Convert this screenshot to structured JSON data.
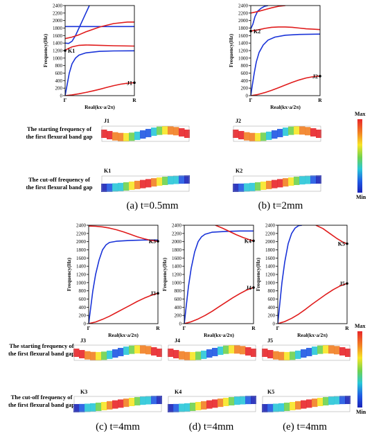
{
  "row_labels": {
    "starting": [
      "The starting frequency of",
      "the first flexural band gap"
    ],
    "cutoff": [
      "The cut-off frequency of",
      "the first flexural band gap"
    ]
  },
  "colorbar": {
    "max_label": "Max",
    "min_label": "Min"
  },
  "captions": [
    "(a) t=0.5mm",
    "(b) t=2mm",
    "(c) t=4mm",
    "(d) t=4mm",
    "(e) t=4mm"
  ],
  "mode_labels": {
    "a": {
      "J": "J1",
      "K": "K1"
    },
    "b": {
      "J": "J2",
      "K": "K2"
    },
    "c": {
      "J": "J3",
      "K": "K3"
    },
    "d": {
      "J": "J4",
      "K": "K4"
    },
    "e": {
      "J": "J5",
      "K": "K5"
    }
  },
  "chart_data": [
    {
      "id": "a",
      "type": "line",
      "xlabel": "Real(kx·a/2π)",
      "ylabel": "Frequency(Hz)",
      "xticklabels": [
        "Γ",
        "R"
      ],
      "xlim": [
        0,
        1
      ],
      "ylim": [
        0,
        2400
      ],
      "yticks": [
        0,
        200,
        400,
        600,
        800,
        1000,
        1200,
        1400,
        1600,
        1800,
        2000,
        2200,
        2400
      ],
      "series": [
        {
          "color": "#e01b1b",
          "x": [
            0,
            0.1,
            0.2,
            0.3,
            0.4,
            0.5,
            0.6,
            0.7,
            0.8,
            0.9,
            1
          ],
          "y": [
            0,
            20,
            50,
            85,
            125,
            170,
            220,
            265,
            305,
            330,
            345
          ]
        },
        {
          "color": "#1832d8",
          "x": [
            0,
            0.03,
            0.06,
            0.1,
            0.15,
            0.2,
            0.3,
            0.5,
            0.7,
            1
          ],
          "y": [
            0,
            300,
            600,
            850,
            1000,
            1080,
            1140,
            1180,
            1190,
            1195
          ]
        },
        {
          "color": "#e01b1b",
          "x": [
            0,
            0.05,
            0.1,
            0.2,
            0.3,
            0.5,
            0.7,
            1
          ],
          "y": [
            1210,
            1260,
            1300,
            1340,
            1350,
            1340,
            1330,
            1320
          ]
        },
        {
          "color": "#1832d8",
          "x": [
            0,
            0.05,
            0.1,
            0.15,
            0.2,
            0.25,
            0.3,
            0.35
          ],
          "y": [
            1400,
            1390,
            1450,
            1600,
            1800,
            2000,
            2200,
            2400
          ]
        },
        {
          "color": "#1832d8",
          "x": [
            0,
            1
          ],
          "y": [
            1840,
            1840
          ]
        },
        {
          "color": "#e01b1b",
          "x": [
            0,
            0.1,
            0.2,
            0.3,
            0.5,
            0.7,
            0.9,
            1
          ],
          "y": [
            1520,
            1560,
            1620,
            1700,
            1830,
            1920,
            1960,
            1960
          ]
        }
      ],
      "points": [
        {
          "label": "J1",
          "x": 1,
          "y": 345
        },
        {
          "label": "K1",
          "x": 0,
          "y": 1200
        }
      ]
    },
    {
      "id": "b",
      "type": "line",
      "xlabel": "Real(kx·a/2π)",
      "ylabel": "Frequency(Hz)",
      "xticklabels": [
        "Γ",
        "R"
      ],
      "xlim": [
        0,
        1
      ],
      "ylim": [
        0,
        2400
      ],
      "yticks": [
        0,
        200,
        400,
        600,
        800,
        1000,
        1200,
        1400,
        1600,
        1800,
        2000,
        2200,
        2400
      ],
      "series": [
        {
          "color": "#e01b1b",
          "x": [
            0,
            0.1,
            0.2,
            0.3,
            0.4,
            0.5,
            0.6,
            0.7,
            0.8,
            0.9,
            1
          ],
          "y": [
            0,
            30,
            80,
            140,
            210,
            285,
            355,
            420,
            470,
            505,
            520
          ]
        },
        {
          "color": "#1832d8",
          "x": [
            0,
            0.02,
            0.05,
            0.08,
            0.12,
            0.18,
            0.25,
            0.35,
            0.5,
            0.7,
            1
          ],
          "y": [
            0,
            250,
            600,
            900,
            1150,
            1350,
            1480,
            1560,
            1610,
            1630,
            1640
          ]
        },
        {
          "color": "#e01b1b",
          "x": [
            0,
            0.1,
            0.2,
            0.3,
            0.4,
            0.5,
            0.6,
            0.7,
            0.8,
            0.9,
            1
          ],
          "y": [
            1720,
            1750,
            1790,
            1820,
            1830,
            1830,
            1820,
            1800,
            1780,
            1770,
            1760
          ]
        },
        {
          "color": "#1832d8",
          "x": [
            0,
            0.03,
            0.06,
            0.1,
            0.15,
            0.2,
            0.25
          ],
          "y": [
            1780,
            1900,
            2100,
            2250,
            2330,
            2380,
            2400
          ]
        },
        {
          "color": "#e01b1b",
          "x": [
            0,
            0.1,
            0.2,
            0.3,
            0.4,
            0.5
          ],
          "y": [
            2200,
            2240,
            2290,
            2340,
            2380,
            2400
          ]
        }
      ],
      "points": [
        {
          "label": "J2",
          "x": 1,
          "y": 520
        },
        {
          "label": "K2",
          "x": 0,
          "y": 1720
        }
      ]
    },
    {
      "id": "c",
      "type": "line",
      "xlabel": "Real(kx·a/2π)",
      "ylabel": "Frequency(Hz)",
      "xticklabels": [
        "Γ",
        "R"
      ],
      "xlim": [
        0,
        1
      ],
      "ylim": [
        0,
        2400
      ],
      "yticks": [
        0,
        200,
        400,
        600,
        800,
        1000,
        1200,
        1400,
        1600,
        1800,
        2000,
        2200,
        2400
      ],
      "series": [
        {
          "color": "#e01b1b",
          "x": [
            0,
            0.1,
            0.2,
            0.3,
            0.4,
            0.5,
            0.6,
            0.7,
            0.8,
            0.9,
            1
          ],
          "y": [
            0,
            40,
            105,
            180,
            270,
            360,
            450,
            540,
            620,
            690,
            740
          ]
        },
        {
          "color": "#1832d8",
          "x": [
            0,
            0.03,
            0.06,
            0.1,
            0.15,
            0.2,
            0.25,
            0.3,
            0.4,
            0.6,
            0.8,
            1
          ],
          "y": [
            0,
            400,
            800,
            1200,
            1550,
            1800,
            1920,
            1980,
            2010,
            2030,
            2040,
            2040
          ]
        },
        {
          "color": "#e01b1b",
          "x": [
            0,
            0.1,
            0.2,
            0.3,
            0.4,
            0.5,
            0.6,
            0.7,
            0.8,
            0.9,
            1
          ],
          "y": [
            2380,
            2375,
            2360,
            2330,
            2290,
            2240,
            2180,
            2120,
            2070,
            2030,
            2010
          ]
        }
      ],
      "points": [
        {
          "label": "J3",
          "x": 1,
          "y": 740
        },
        {
          "label": "K3",
          "x": 1,
          "y": 2010
        }
      ]
    },
    {
      "id": "d",
      "type": "line",
      "xlabel": "Real(kx·a/2π)",
      "ylabel": "Frequency(Hz)",
      "xticklabels": [
        "Γ",
        "R"
      ],
      "xlim": [
        0,
        1
      ],
      "ylim": [
        0,
        2400
      ],
      "yticks": [
        0,
        200,
        400,
        600,
        800,
        1000,
        1200,
        1400,
        1600,
        1800,
        2000,
        2200,
        2400
      ],
      "series": [
        {
          "color": "#e01b1b",
          "x": [
            0,
            0.1,
            0.2,
            0.3,
            0.4,
            0.5,
            0.6,
            0.7,
            0.8,
            0.9,
            1
          ],
          "y": [
            0,
            45,
            115,
            200,
            300,
            410,
            520,
            630,
            730,
            820,
            880
          ]
        },
        {
          "color": "#1832d8",
          "x": [
            0,
            0.03,
            0.06,
            0.1,
            0.15,
            0.2,
            0.25,
            0.3,
            0.4,
            0.6,
            0.8,
            1
          ],
          "y": [
            0,
            450,
            900,
            1350,
            1750,
            2000,
            2120,
            2180,
            2230,
            2250,
            2260,
            2260
          ]
        },
        {
          "color": "#e01b1b",
          "x": [
            0.45,
            0.55,
            0.65,
            0.75,
            0.85,
            0.95,
            1
          ],
          "y": [
            2400,
            2330,
            2250,
            2170,
            2100,
            2040,
            2020
          ]
        }
      ],
      "points": [
        {
          "label": "J4",
          "x": 1,
          "y": 880
        },
        {
          "label": "K4",
          "x": 1,
          "y": 2020
        }
      ]
    },
    {
      "id": "e",
      "type": "line",
      "xlabel": "Real(kx·a/2π)",
      "ylabel": "Frequency(Hz)",
      "xticklabels": [
        "Γ",
        "R"
      ],
      "xlim": [
        0,
        1
      ],
      "ylim": [
        0,
        2400
      ],
      "yticks": [
        0,
        200,
        400,
        600,
        800,
        1000,
        1200,
        1400,
        1600,
        1800,
        2000,
        2200,
        2400
      ],
      "series": [
        {
          "color": "#e01b1b",
          "x": [
            0,
            0.1,
            0.2,
            0.3,
            0.4,
            0.5,
            0.6,
            0.7,
            0.8,
            0.9,
            1
          ],
          "y": [
            0,
            50,
            130,
            230,
            350,
            480,
            600,
            720,
            830,
            920,
            980
          ]
        },
        {
          "color": "#1832d8",
          "x": [
            0,
            0.03,
            0.06,
            0.1,
            0.15,
            0.2,
            0.25,
            0.3,
            0.35
          ],
          "y": [
            0,
            500,
            1000,
            1500,
            1950,
            2200,
            2330,
            2390,
            2400
          ]
        },
        {
          "color": "#e01b1b",
          "x": [
            0.55,
            0.65,
            0.75,
            0.85,
            0.95,
            1
          ],
          "y": [
            2400,
            2320,
            2200,
            2080,
            1980,
            1950
          ]
        }
      ],
      "points": [
        {
          "label": "J5",
          "x": 1,
          "y": 980
        },
        {
          "label": "K5",
          "x": 1,
          "y": 1950
        }
      ]
    }
  ]
}
